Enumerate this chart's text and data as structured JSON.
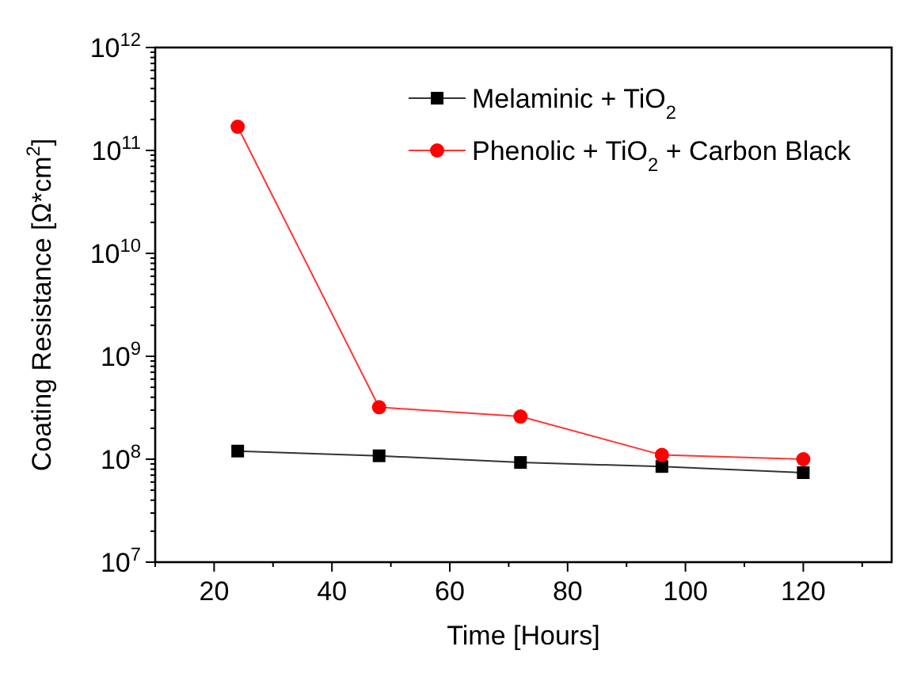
{
  "chart_data": {
    "type": "line",
    "xlabel": "Time [Hours]",
    "ylabel": "Coating Resistance [Ω*cm$^{2}$]",
    "log": "y",
    "xlim": [
      10,
      135
    ],
    "xticks": [
      20,
      40,
      60,
      80,
      100,
      120
    ],
    "ylim": [
      10000000.0,
      1000000000000.0
    ],
    "yticks": [
      {
        "value": 10000000.0,
        "label": "10$^{7}$"
      },
      {
        "value": 100000000.0,
        "label": "10$^{8}$"
      },
      {
        "value": 1000000000.0,
        "label": "10$^{9}$"
      },
      {
        "value": 10000000000.0,
        "label": "10$^{10}$"
      },
      {
        "value": 100000000000.0,
        "label": "10$^{11}$"
      },
      {
        "value": 1000000000000.0,
        "label": "10$^{12}$"
      }
    ],
    "x": [
      24,
      48,
      72,
      96,
      120
    ],
    "grid": false,
    "legend": "top right",
    "line_style": "solid",
    "series": [
      {
        "name": "Melaminic + TiO$_{2}$",
        "color": "#000000",
        "marker": "square",
        "values": [
          120000000.0,
          108000000.0,
          93000000.0,
          85000000.0,
          74000000.0
        ]
      },
      {
        "name": "Phenolic + TiO$_{2}$ + Carbon Black",
        "color": "#ff0000",
        "marker": "circle",
        "values": [
          170000000000.0,
          320000000.0,
          260000000.0,
          110000000.0,
          100000000.0
        ]
      }
    ]
  }
}
